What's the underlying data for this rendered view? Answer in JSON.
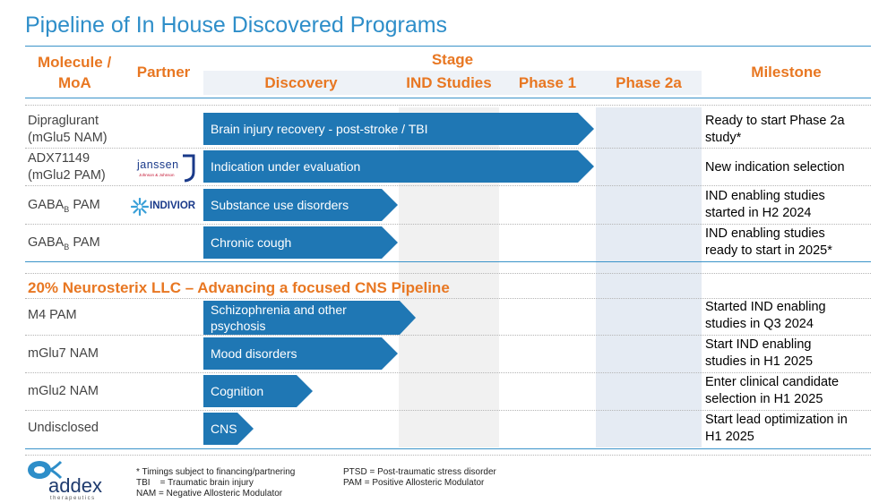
{
  "title": "Pipeline of In House Discovered Programs",
  "colors": {
    "accent": "#e87722",
    "title_blue": "#2e8ec9",
    "bar_blue": "#1f77b4"
  },
  "headers": {
    "molecule_line1": "Molecule /",
    "molecule_line2": "MoA",
    "partner": "Partner",
    "stage": "Stage",
    "discovery": "Discovery",
    "ind_studies": "IND Studies",
    "phase1": "Phase 1",
    "phase2a": "Phase 2a",
    "milestone": "Milestone"
  },
  "partners": {
    "janssen": "janssen",
    "janssen_sub": "Johnson & Johnson",
    "indivior": "INDIVIOR"
  },
  "rows": [
    {
      "molecule_line1": "Dipraglurant",
      "molecule_line2": "(mGlu5 NAM)",
      "partner": "",
      "program": "Brain injury recovery - post-stroke / TBI",
      "stage_progress": "Phase 1",
      "milestone_line1": "Ready to start Phase 2a",
      "milestone_line2": "study*"
    },
    {
      "molecule_line1": "ADX71149",
      "molecule_line2": "(mGlu2 PAM)",
      "partner": "janssen",
      "program": "Indication under evaluation",
      "stage_progress": "Phase 1",
      "milestone_line1": "New indication selection",
      "milestone_line2": ""
    },
    {
      "molecule_prefix": "GABA",
      "molecule_sub": "B",
      "molecule_suffix": " PAM",
      "partner": "indivior",
      "program": "Substance use disorders",
      "stage_progress": "Discovery",
      "milestone_line1": "IND enabling studies",
      "milestone_line2": "started in H2 2024"
    },
    {
      "molecule_prefix": "GABA",
      "molecule_sub": "B",
      "molecule_suffix": " PAM",
      "partner": "",
      "program": "Chronic cough",
      "stage_progress": "Discovery",
      "milestone_line1": "IND enabling studies",
      "milestone_line2": "ready to start in 2025*"
    }
  ],
  "section_title": "20% Neurosterix LLC – Advancing a focused CNS Pipeline",
  "neurosterix_rows": [
    {
      "molecule": "M4 PAM",
      "program_line1": "Schizophrenia and other",
      "program_line2": "psychosis",
      "stage_progress": "IND Studies",
      "milestone_line1": "Started IND enabling",
      "milestone_line2": "studies in Q3 2024"
    },
    {
      "molecule": "mGlu7 NAM",
      "program_line1": "Mood disorders",
      "program_line2": "",
      "stage_progress": "Discovery",
      "milestone_line1": "Start IND enabling",
      "milestone_line2": "studies in H1 2025"
    },
    {
      "molecule": "mGlu2 NAM",
      "program_line1": "Cognition",
      "program_line2": "",
      "stage_progress": "Discovery",
      "milestone_line1": "Enter clinical candidate",
      "milestone_line2": "selection in H1 2025"
    },
    {
      "molecule": "Undisclosed",
      "program_line1": "CNS",
      "program_line2": "",
      "stage_progress": "Discovery",
      "milestone_line1": "Start lead optimization in",
      "milestone_line2": "H1 2025"
    }
  ],
  "footnotes": {
    "f1": "* Timings subject to financing/partnering",
    "f2": "TBI    = Traumatic brain injury",
    "f3": "NAM = Negative Allosteric Modulator",
    "f4": "PTSD = Post-traumatic stress disorder",
    "f5": "PAM = Positive Allosteric Modulator"
  },
  "logo": {
    "name": "addex",
    "tagline": "therapeutics"
  }
}
